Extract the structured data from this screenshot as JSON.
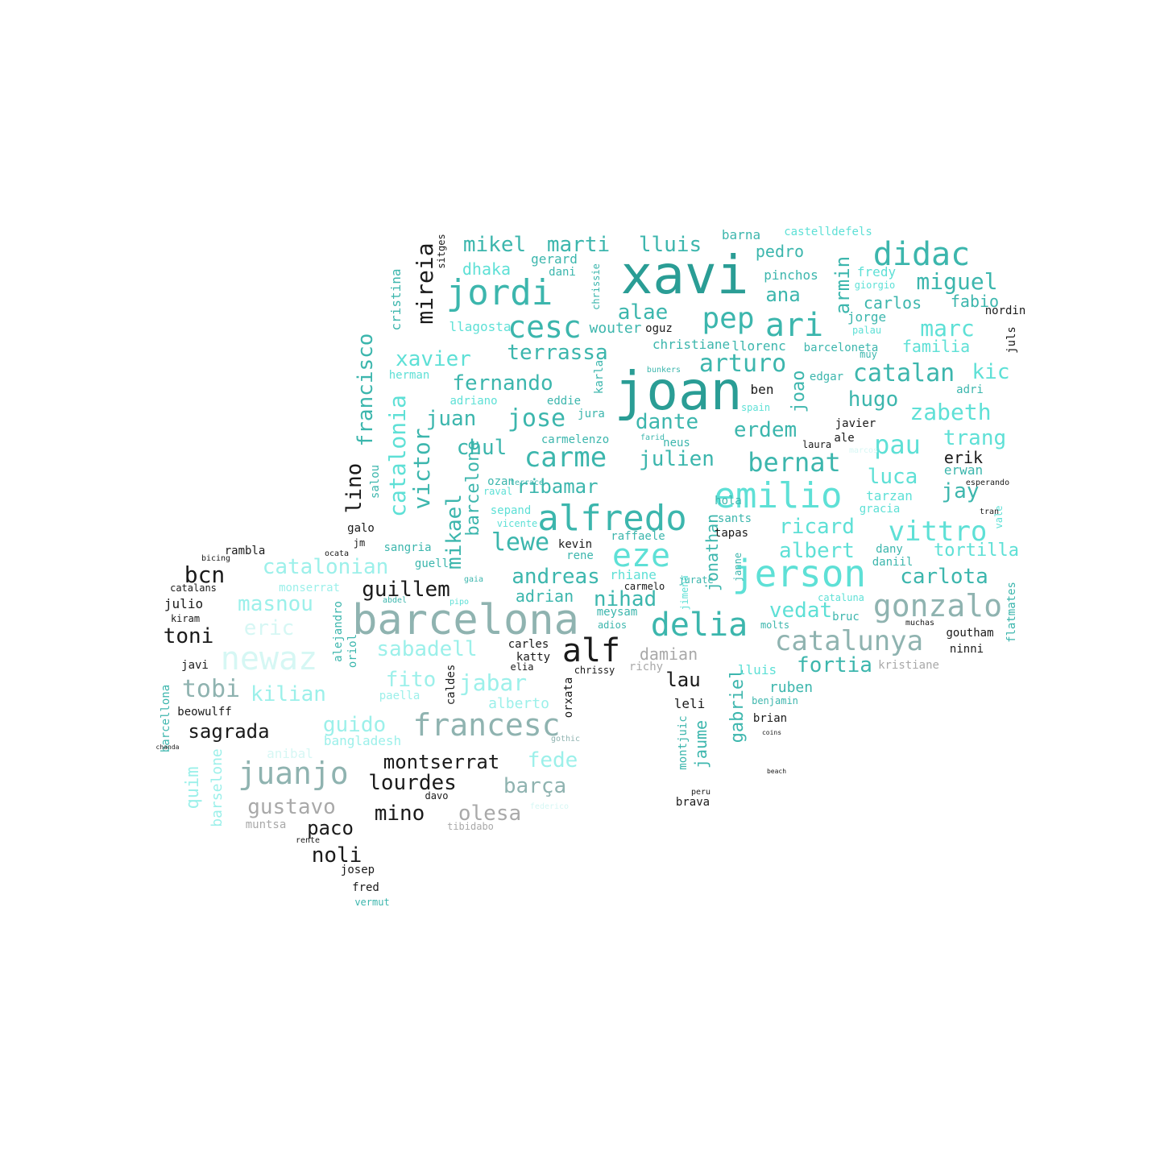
{
  "word_cloud": {
    "colors": {
      "dark_teal": "#2a9d95",
      "teal": "#3cb6ad",
      "aqua": "#5ee0d6",
      "light_aqua": "#9cf0ea",
      "pale": "#d6f7f4",
      "gray_teal": "#8fb3b0",
      "gray": "#a9a9a9",
      "black": "#1a1a1a"
    },
    "words": [
      {
        "text": "xavi",
        "color": "dark_teal"
      },
      {
        "text": "joan",
        "color": "dark_teal"
      },
      {
        "text": "barcelona",
        "color": "gray_teal"
      },
      {
        "text": "jerson",
        "color": "aqua"
      },
      {
        "text": "alfredo",
        "color": "teal"
      },
      {
        "text": "emilio",
        "color": "aqua"
      },
      {
        "text": "jordi",
        "color": "teal"
      },
      {
        "text": "didac",
        "color": "teal"
      },
      {
        "text": "ari",
        "color": "teal"
      },
      {
        "text": "newaz",
        "color": "pale"
      },
      {
        "text": "gonzalo",
        "color": "gray_teal"
      },
      {
        "text": "alf",
        "color": "black"
      },
      {
        "text": "delia",
        "color": "teal"
      },
      {
        "text": "eze",
        "color": "aqua"
      },
      {
        "text": "juanjo",
        "color": "gray_teal"
      },
      {
        "text": "francesc",
        "color": "gray_teal"
      },
      {
        "text": "vittro",
        "color": "aqua"
      },
      {
        "text": "catalunya",
        "color": "gray_teal"
      },
      {
        "text": "pep",
        "color": "teal"
      },
      {
        "text": "cesc",
        "color": "teal"
      },
      {
        "text": "carme",
        "color": "teal"
      },
      {
        "text": "jose",
        "color": "teal"
      },
      {
        "text": "bernat",
        "color": "teal"
      },
      {
        "text": "pau",
        "color": "aqua"
      },
      {
        "text": "catalan",
        "color": "teal"
      },
      {
        "text": "arturo",
        "color": "teal"
      },
      {
        "text": "miguel",
        "color": "teal"
      },
      {
        "text": "marc",
        "color": "aqua"
      },
      {
        "text": "zabeth",
        "color": "aqua"
      },
      {
        "text": "mireia",
        "color": "black"
      },
      {
        "text": "catalonia",
        "color": "aqua"
      },
      {
        "text": "mikael",
        "color": "teal"
      },
      {
        "text": "victor",
        "color": "teal"
      },
      {
        "text": "francisco",
        "color": "teal"
      },
      {
        "text": "lino",
        "color": "black"
      },
      {
        "text": "armin",
        "color": "teal"
      },
      {
        "text": "joao",
        "color": "teal"
      },
      {
        "text": "fernando",
        "color": "teal"
      },
      {
        "text": "xavier",
        "color": "aqua"
      },
      {
        "text": "terrassa",
        "color": "teal"
      },
      {
        "text": "mikel",
        "color": "teal"
      },
      {
        "text": "marti",
        "color": "teal"
      },
      {
        "text": "lluis",
        "color": "teal"
      },
      {
        "text": "alae",
        "color": "teal"
      },
      {
        "text": "lewe",
        "color": "teal"
      },
      {
        "text": "ribamar",
        "color": "teal"
      },
      {
        "text": "julien",
        "color": "teal"
      },
      {
        "text": "dante",
        "color": "teal"
      },
      {
        "text": "erdem",
        "color": "teal"
      },
      {
        "text": "hugo",
        "color": "teal"
      },
      {
        "text": "kic",
        "color": "aqua"
      },
      {
        "text": "trang",
        "color": "aqua"
      },
      {
        "text": "luca",
        "color": "aqua"
      },
      {
        "text": "jay",
        "color": "teal"
      },
      {
        "text": "ricard",
        "color": "aqua"
      },
      {
        "text": "albert",
        "color": "aqua"
      },
      {
        "text": "carlota",
        "color": "teal"
      },
      {
        "text": "tortilla",
        "color": "aqua"
      },
      {
        "text": "vedat",
        "color": "aqua"
      },
      {
        "text": "fortia",
        "color": "teal"
      },
      {
        "text": "nihad",
        "color": "teal"
      },
      {
        "text": "andreas",
        "color": "teal"
      },
      {
        "text": "adrian",
        "color": "teal"
      },
      {
        "text": "guillem",
        "color": "black"
      },
      {
        "text": "catalonian",
        "color": "light_aqua"
      },
      {
        "text": "masnou",
        "color": "light_aqua"
      },
      {
        "text": "eric",
        "color": "pale"
      },
      {
        "text": "sabadell",
        "color": "light_aqua"
      },
      {
        "text": "fito",
        "color": "light_aqua"
      },
      {
        "text": "jabar",
        "color": "light_aqua"
      },
      {
        "text": "guido",
        "color": "light_aqua"
      },
      {
        "text": "kilian",
        "color": "light_aqua"
      },
      {
        "text": "tobi",
        "color": "gray_teal"
      },
      {
        "text": "sagrada",
        "color": "black"
      },
      {
        "text": "montserrat",
        "color": "black"
      },
      {
        "text": "lourdes",
        "color": "black"
      },
      {
        "text": "barça",
        "color": "gray_teal"
      },
      {
        "text": "fede",
        "color": "light_aqua"
      },
      {
        "text": "mino",
        "color": "black"
      },
      {
        "text": "olesa",
        "color": "gray"
      },
      {
        "text": "gustavo",
        "color": "gray"
      },
      {
        "text": "paco",
        "color": "black"
      },
      {
        "text": "noli",
        "color": "black"
      },
      {
        "text": "bcn",
        "color": "black"
      },
      {
        "text": "toni",
        "color": "black"
      },
      {
        "text": "juan",
        "color": "teal"
      },
      {
        "text": "chul",
        "color": "teal"
      },
      {
        "text": "barcelone",
        "color": "teal"
      },
      {
        "text": "jonathan",
        "color": "teal"
      },
      {
        "text": "gabriel",
        "color": "teal"
      },
      {
        "text": "jaume",
        "color": "teal"
      },
      {
        "text": "damian",
        "color": "gray"
      },
      {
        "text": "lau",
        "color": "black"
      },
      {
        "text": "ana",
        "color": "teal"
      },
      {
        "text": "familia",
        "color": "aqua"
      },
      {
        "text": "fabio",
        "color": "teal"
      },
      {
        "text": "carlos",
        "color": "teal"
      },
      {
        "text": "dhaka",
        "color": "aqua"
      },
      {
        "text": "gerard",
        "color": "teal"
      },
      {
        "text": "pedro",
        "color": "teal"
      },
      {
        "text": "pinchos",
        "color": "teal"
      },
      {
        "text": "barna",
        "color": "teal"
      },
      {
        "text": "castelldefels",
        "color": "aqua"
      },
      {
        "text": "wouter",
        "color": "teal"
      },
      {
        "text": "christiane",
        "color": "teal"
      },
      {
        "text": "llorenc",
        "color": "teal"
      },
      {
        "text": "llagosta",
        "color": "aqua"
      },
      {
        "text": "oguz",
        "color": "black"
      },
      {
        "text": "barceloneta",
        "color": "teal"
      },
      {
        "text": "jorge",
        "color": "teal"
      },
      {
        "text": "fredy",
        "color": "aqua"
      },
      {
        "text": "juls",
        "color": "black"
      },
      {
        "text": "cristina",
        "color": "teal"
      },
      {
        "text": "sitges",
        "color": "black"
      },
      {
        "text": "rambla",
        "color": "black"
      },
      {
        "text": "julio",
        "color": "black"
      },
      {
        "text": "kiram",
        "color": "black"
      },
      {
        "text": "catalans",
        "color": "black"
      },
      {
        "text": "monserrat",
        "color": "light_aqua"
      },
      {
        "text": "alejandro",
        "color": "teal"
      },
      {
        "text": "oriol",
        "color": "teal"
      },
      {
        "text": "caldes",
        "color": "black"
      },
      {
        "text": "alberto",
        "color": "light_aqua"
      },
      {
        "text": "paella",
        "color": "light_aqua"
      },
      {
        "text": "bangladesh",
        "color": "light_aqua"
      },
      {
        "text": "beowulff",
        "color": "black"
      },
      {
        "text": "javi",
        "color": "black"
      },
      {
        "text": "quim",
        "color": "light_aqua"
      },
      {
        "text": "barcellona",
        "color": "teal"
      },
      {
        "text": "barselone",
        "color": "light_aqua"
      },
      {
        "text": "anibal",
        "color": "pale"
      },
      {
        "text": "muntsa",
        "color": "gray"
      },
      {
        "text": "carles",
        "color": "black"
      },
      {
        "text": "katty",
        "color": "black"
      },
      {
        "text": "elia",
        "color": "black"
      },
      {
        "text": "chrissy",
        "color": "black"
      },
      {
        "text": "richy",
        "color": "gray"
      },
      {
        "text": "kristiane",
        "color": "gray"
      },
      {
        "text": "lluis",
        "color": "aqua"
      },
      {
        "text": "ruben",
        "color": "teal"
      },
      {
        "text": "benjamin",
        "color": "teal"
      },
      {
        "text": "brian",
        "color": "black"
      },
      {
        "text": "leli",
        "color": "black"
      },
      {
        "text": "montjuic",
        "color": "teal"
      },
      {
        "text": "brava",
        "color": "black"
      },
      {
        "text": "goutham",
        "color": "black"
      },
      {
        "text": "ninni",
        "color": "black"
      },
      {
        "text": "bruc",
        "color": "teal"
      },
      {
        "text": "muchas",
        "color": "black"
      },
      {
        "text": "flatmates",
        "color": "teal"
      },
      {
        "text": "sangria",
        "color": "teal"
      },
      {
        "text": "guell",
        "color": "teal"
      },
      {
        "text": "galo",
        "color": "black"
      },
      {
        "text": "jm",
        "color": "black"
      },
      {
        "text": "kevin",
        "color": "black"
      },
      {
        "text": "rene",
        "color": "teal"
      },
      {
        "text": "raffaele",
        "color": "teal"
      },
      {
        "text": "tapas",
        "color": "black"
      },
      {
        "text": "sants",
        "color": "teal"
      },
      {
        "text": "hola",
        "color": "teal"
      },
      {
        "text": "rhiane",
        "color": "aqua"
      },
      {
        "text": "meysam",
        "color": "teal"
      },
      {
        "text": "adios",
        "color": "teal"
      },
      {
        "text": "vicente",
        "color": "aqua"
      },
      {
        "text": "sepand",
        "color": "aqua"
      },
      {
        "text": "ozan",
        "color": "teal"
      },
      {
        "text": "raval",
        "color": "aqua"
      },
      {
        "text": "carmelenzo",
        "color": "teal"
      },
      {
        "text": "jura",
        "color": "teal"
      },
      {
        "text": "karla",
        "color": "teal"
      },
      {
        "text": "eddie",
        "color": "teal"
      },
      {
        "text": "adriano",
        "color": "aqua"
      },
      {
        "text": "herman",
        "color": "aqua"
      },
      {
        "text": "salou",
        "color": "teal"
      },
      {
        "text": "dani",
        "color": "teal"
      },
      {
        "text": "chrissie",
        "color": "teal"
      },
      {
        "text": "neus",
        "color": "teal"
      },
      {
        "text": "farid",
        "color": "teal"
      },
      {
        "text": "ale",
        "color": "black"
      },
      {
        "text": "javier",
        "color": "black"
      },
      {
        "text": "laura",
        "color": "black"
      },
      {
        "text": "erik",
        "color": "black"
      },
      {
        "text": "erwan",
        "color": "teal"
      },
      {
        "text": "tarzan",
        "color": "aqua"
      },
      {
        "text": "gracia",
        "color": "aqua"
      },
      {
        "text": "dany",
        "color": "teal"
      },
      {
        "text": "daniil",
        "color": "teal"
      },
      {
        "text": "vale",
        "color": "aqua"
      },
      {
        "text": "ben",
        "color": "black"
      },
      {
        "text": "spain",
        "color": "aqua"
      },
      {
        "text": "edgar",
        "color": "teal"
      },
      {
        "text": "adri",
        "color": "teal"
      },
      {
        "text": "bunkers",
        "color": "teal"
      },
      {
        "text": "palau",
        "color": "aqua"
      },
      {
        "text": "nordin",
        "color": "black"
      },
      {
        "text": "giorgio",
        "color": "aqua"
      },
      {
        "text": "jimena",
        "color": "aqua"
      },
      {
        "text": "carmelo",
        "color": "black"
      },
      {
        "text": "jurate",
        "color": "teal"
      },
      {
        "text": "janne",
        "color": "teal"
      },
      {
        "text": "molts",
        "color": "teal"
      },
      {
        "text": "cataluna",
        "color": "aqua"
      },
      {
        "text": "vermut",
        "color": "teal"
      },
      {
        "text": "fred",
        "color": "black"
      },
      {
        "text": "josep",
        "color": "black"
      },
      {
        "text": "peru",
        "color": "black"
      },
      {
        "text": "coins",
        "color": "black"
      },
      {
        "text": "beach",
        "color": "black"
      },
      {
        "text": "davo",
        "color": "black"
      },
      {
        "text": "tibidabo",
        "color": "gray"
      },
      {
        "text": "federico",
        "color": "pale"
      },
      {
        "text": "bicing",
        "color": "black"
      },
      {
        "text": "ocata",
        "color": "black"
      },
      {
        "text": "rente",
        "color": "black"
      },
      {
        "text": "orxata",
        "color": "black"
      },
      {
        "text": "gothic",
        "color": "gray_teal"
      },
      {
        "text": "chanda",
        "color": "black"
      },
      {
        "text": "marcos",
        "color": "pale"
      },
      {
        "text": "esperando",
        "color": "black"
      },
      {
        "text": "tran",
        "color": "black"
      },
      {
        "text": "muy",
        "color": "teal"
      },
      {
        "text": "gaia",
        "color": "teal"
      },
      {
        "text": "terrace",
        "color": "teal"
      },
      {
        "text": "abdel",
        "color": "teal"
      },
      {
        "text": "pipo",
        "color": "aqua"
      },
      {
        "text": "mikaels",
        "color": "black"
      },
      {
        "text": "estetano",
        "color": "aqua"
      }
    ]
  }
}
